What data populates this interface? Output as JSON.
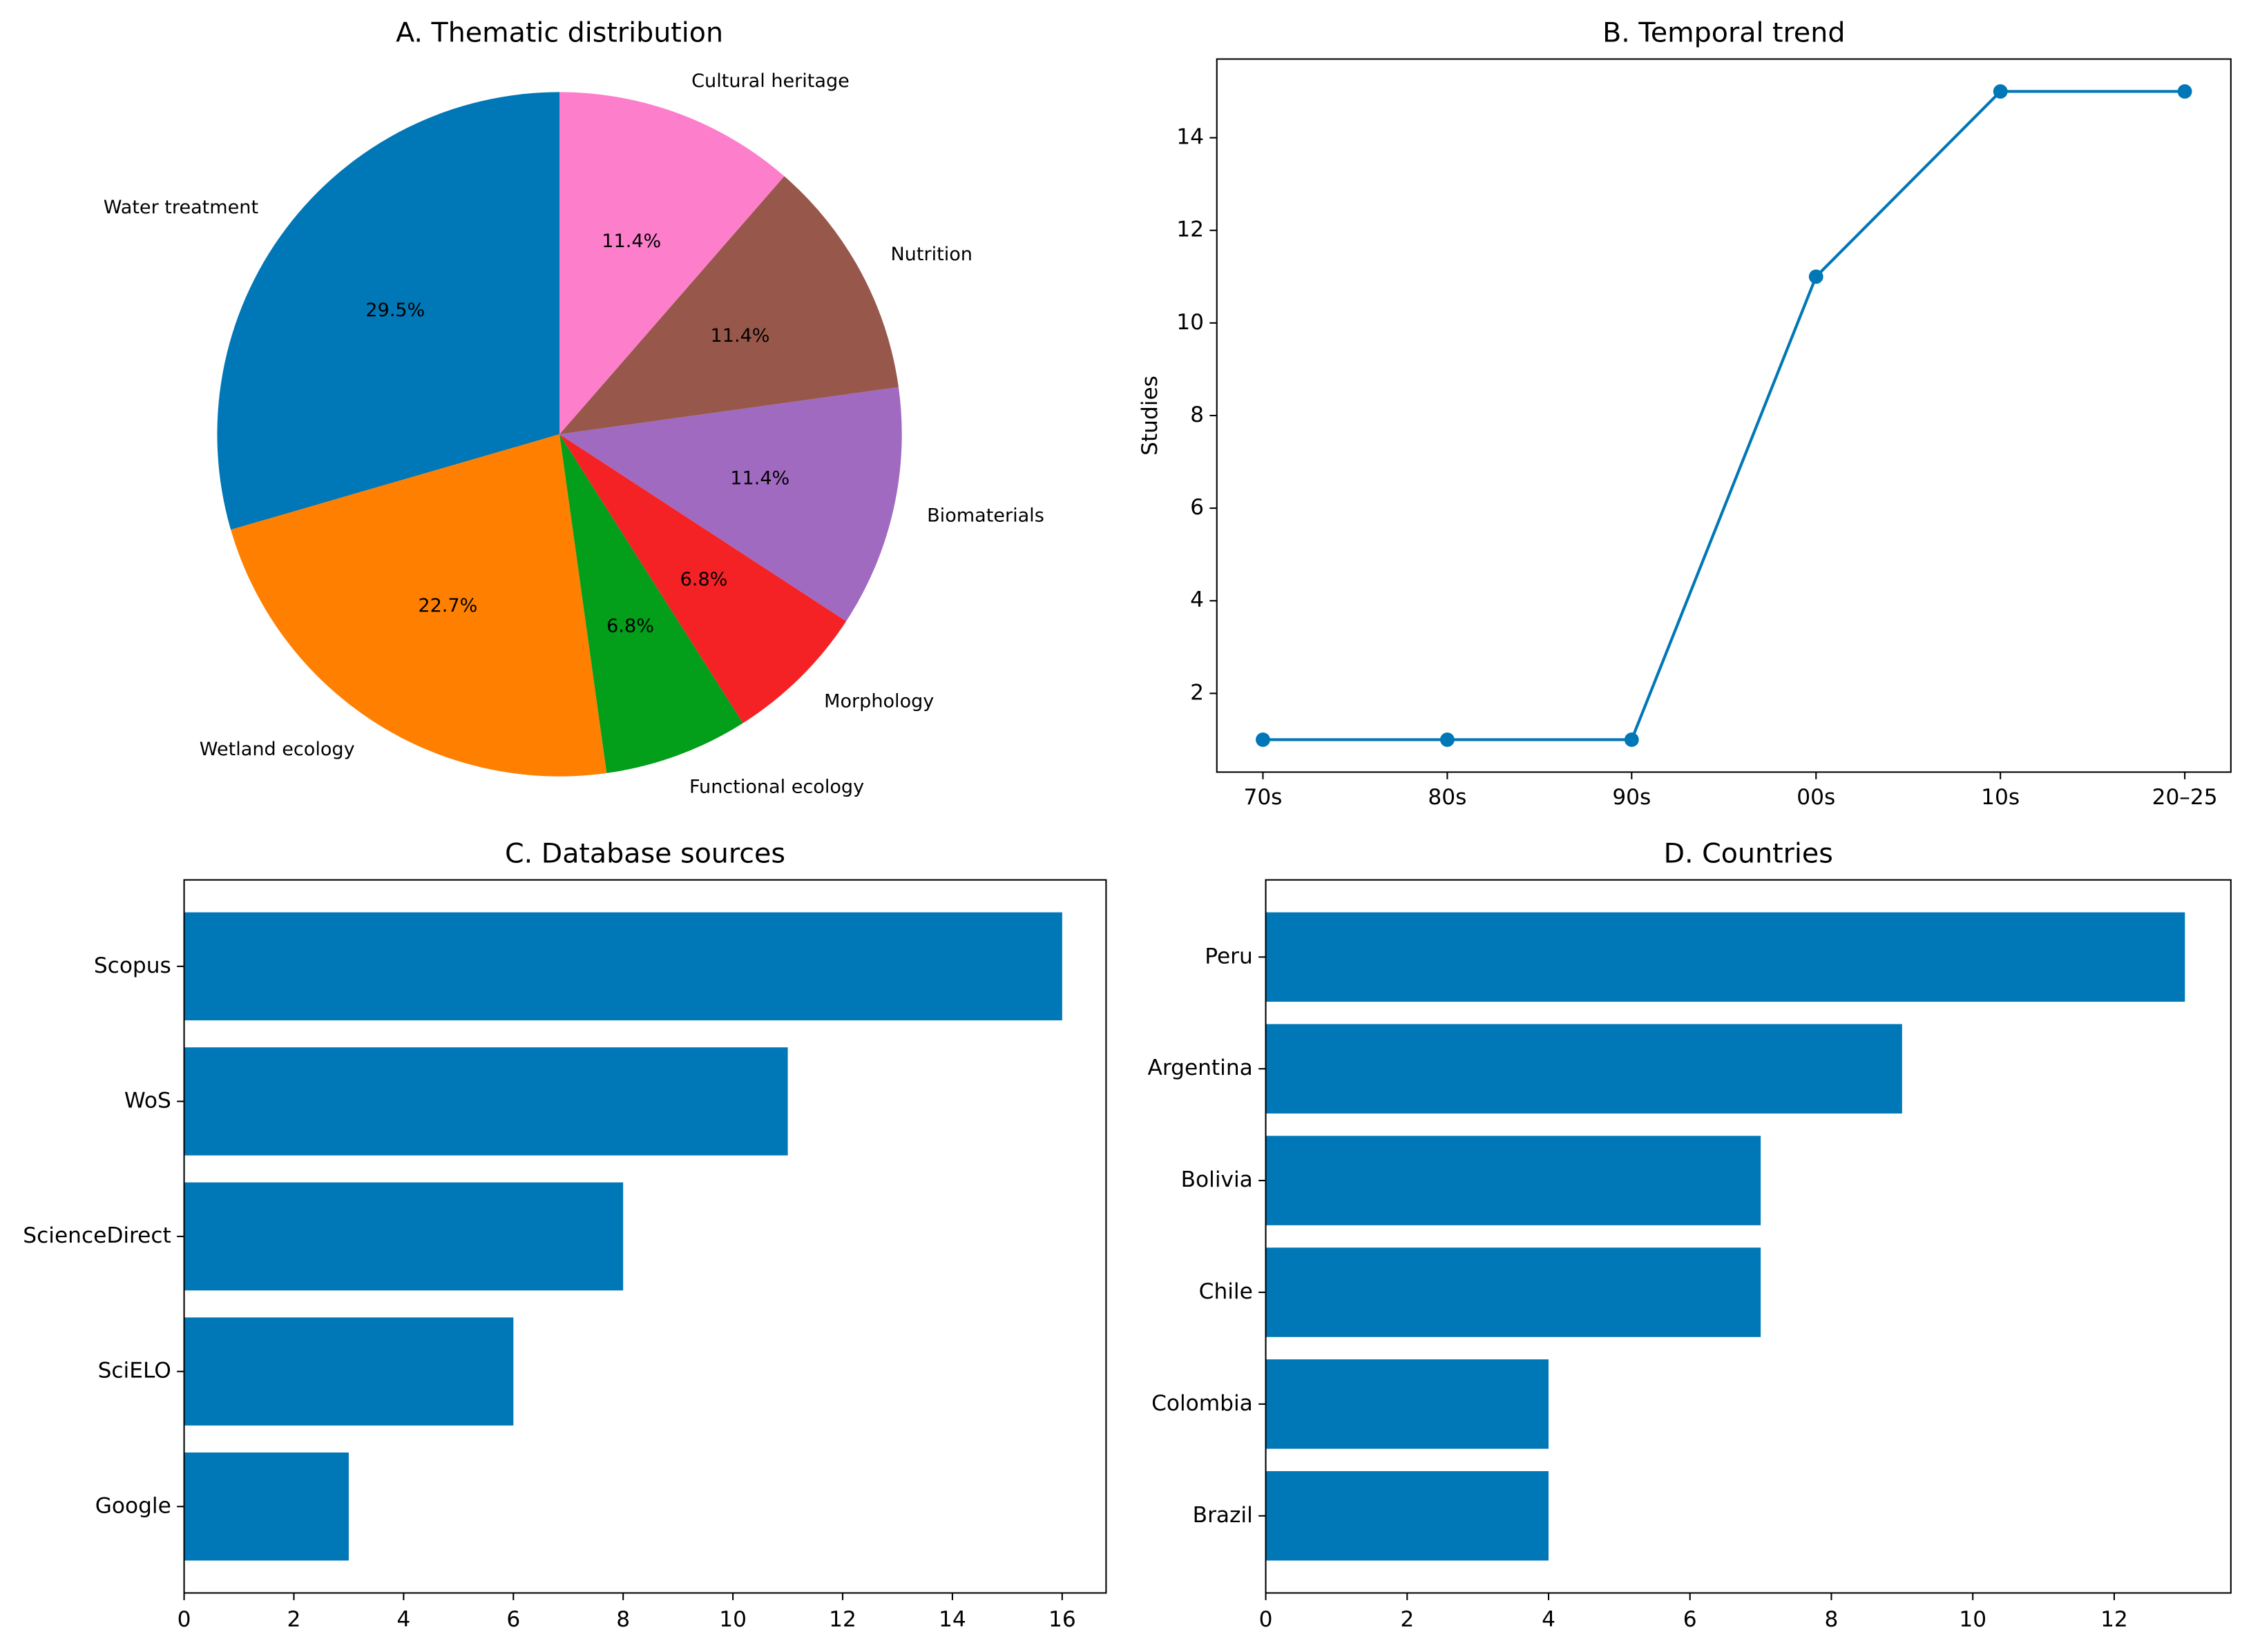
{
  "chart_data": [
    {
      "type": "pie",
      "title": "A. Thematic distribution",
      "categories": [
        "Water treatment",
        "Wetland ecology",
        "Functional ecology",
        "Morphology",
        "Biomaterials",
        "Nutrition",
        "Cultural heritage"
      ],
      "values": [
        29.5,
        22.7,
        6.8,
        6.8,
        11.4,
        11.4,
        11.4
      ],
      "value_labels": [
        "29.5%",
        "22.7%",
        "6.8%",
        "6.8%",
        "11.4%",
        "11.4%",
        "11.4%"
      ],
      "colors": [
        "#0077b6",
        "#ff7f00",
        "#039e1a",
        "#f52225",
        "#a06ac1",
        "#98574b",
        "#fd7ecb"
      ]
    },
    {
      "type": "line",
      "title": "B. Temporal trend",
      "ylabel": "Studies",
      "categories": [
        "70s",
        "80s",
        "90s",
        "00s",
        "10s",
        "20–25"
      ],
      "values": [
        1,
        1,
        1,
        11,
        15,
        15
      ],
      "color": "#0077b6",
      "ylim": [
        0.3,
        15.7
      ],
      "yticks": [
        2,
        4,
        6,
        8,
        10,
        12,
        14
      ]
    },
    {
      "type": "hbar",
      "title": "C. Database sources",
      "categories": [
        "Scopus",
        "WoS",
        "ScienceDirect",
        "SciELO",
        "Google"
      ],
      "values": [
        16,
        11,
        8,
        6,
        3
      ],
      "color": "#0077b6",
      "xlim": [
        0,
        16.8
      ],
      "xticks": [
        0,
        2,
        4,
        6,
        8,
        10,
        12,
        14,
        16
      ]
    },
    {
      "type": "hbar",
      "title": "D. Countries",
      "categories": [
        "Peru",
        "Argentina",
        "Bolivia",
        "Chile",
        "Colombia",
        "Brazil"
      ],
      "values": [
        13,
        9,
        7,
        7,
        4,
        4
      ],
      "color": "#0077b6",
      "xlim": [
        0,
        13.65
      ],
      "xticks": [
        0,
        2,
        4,
        6,
        8,
        10,
        12
      ]
    }
  ]
}
